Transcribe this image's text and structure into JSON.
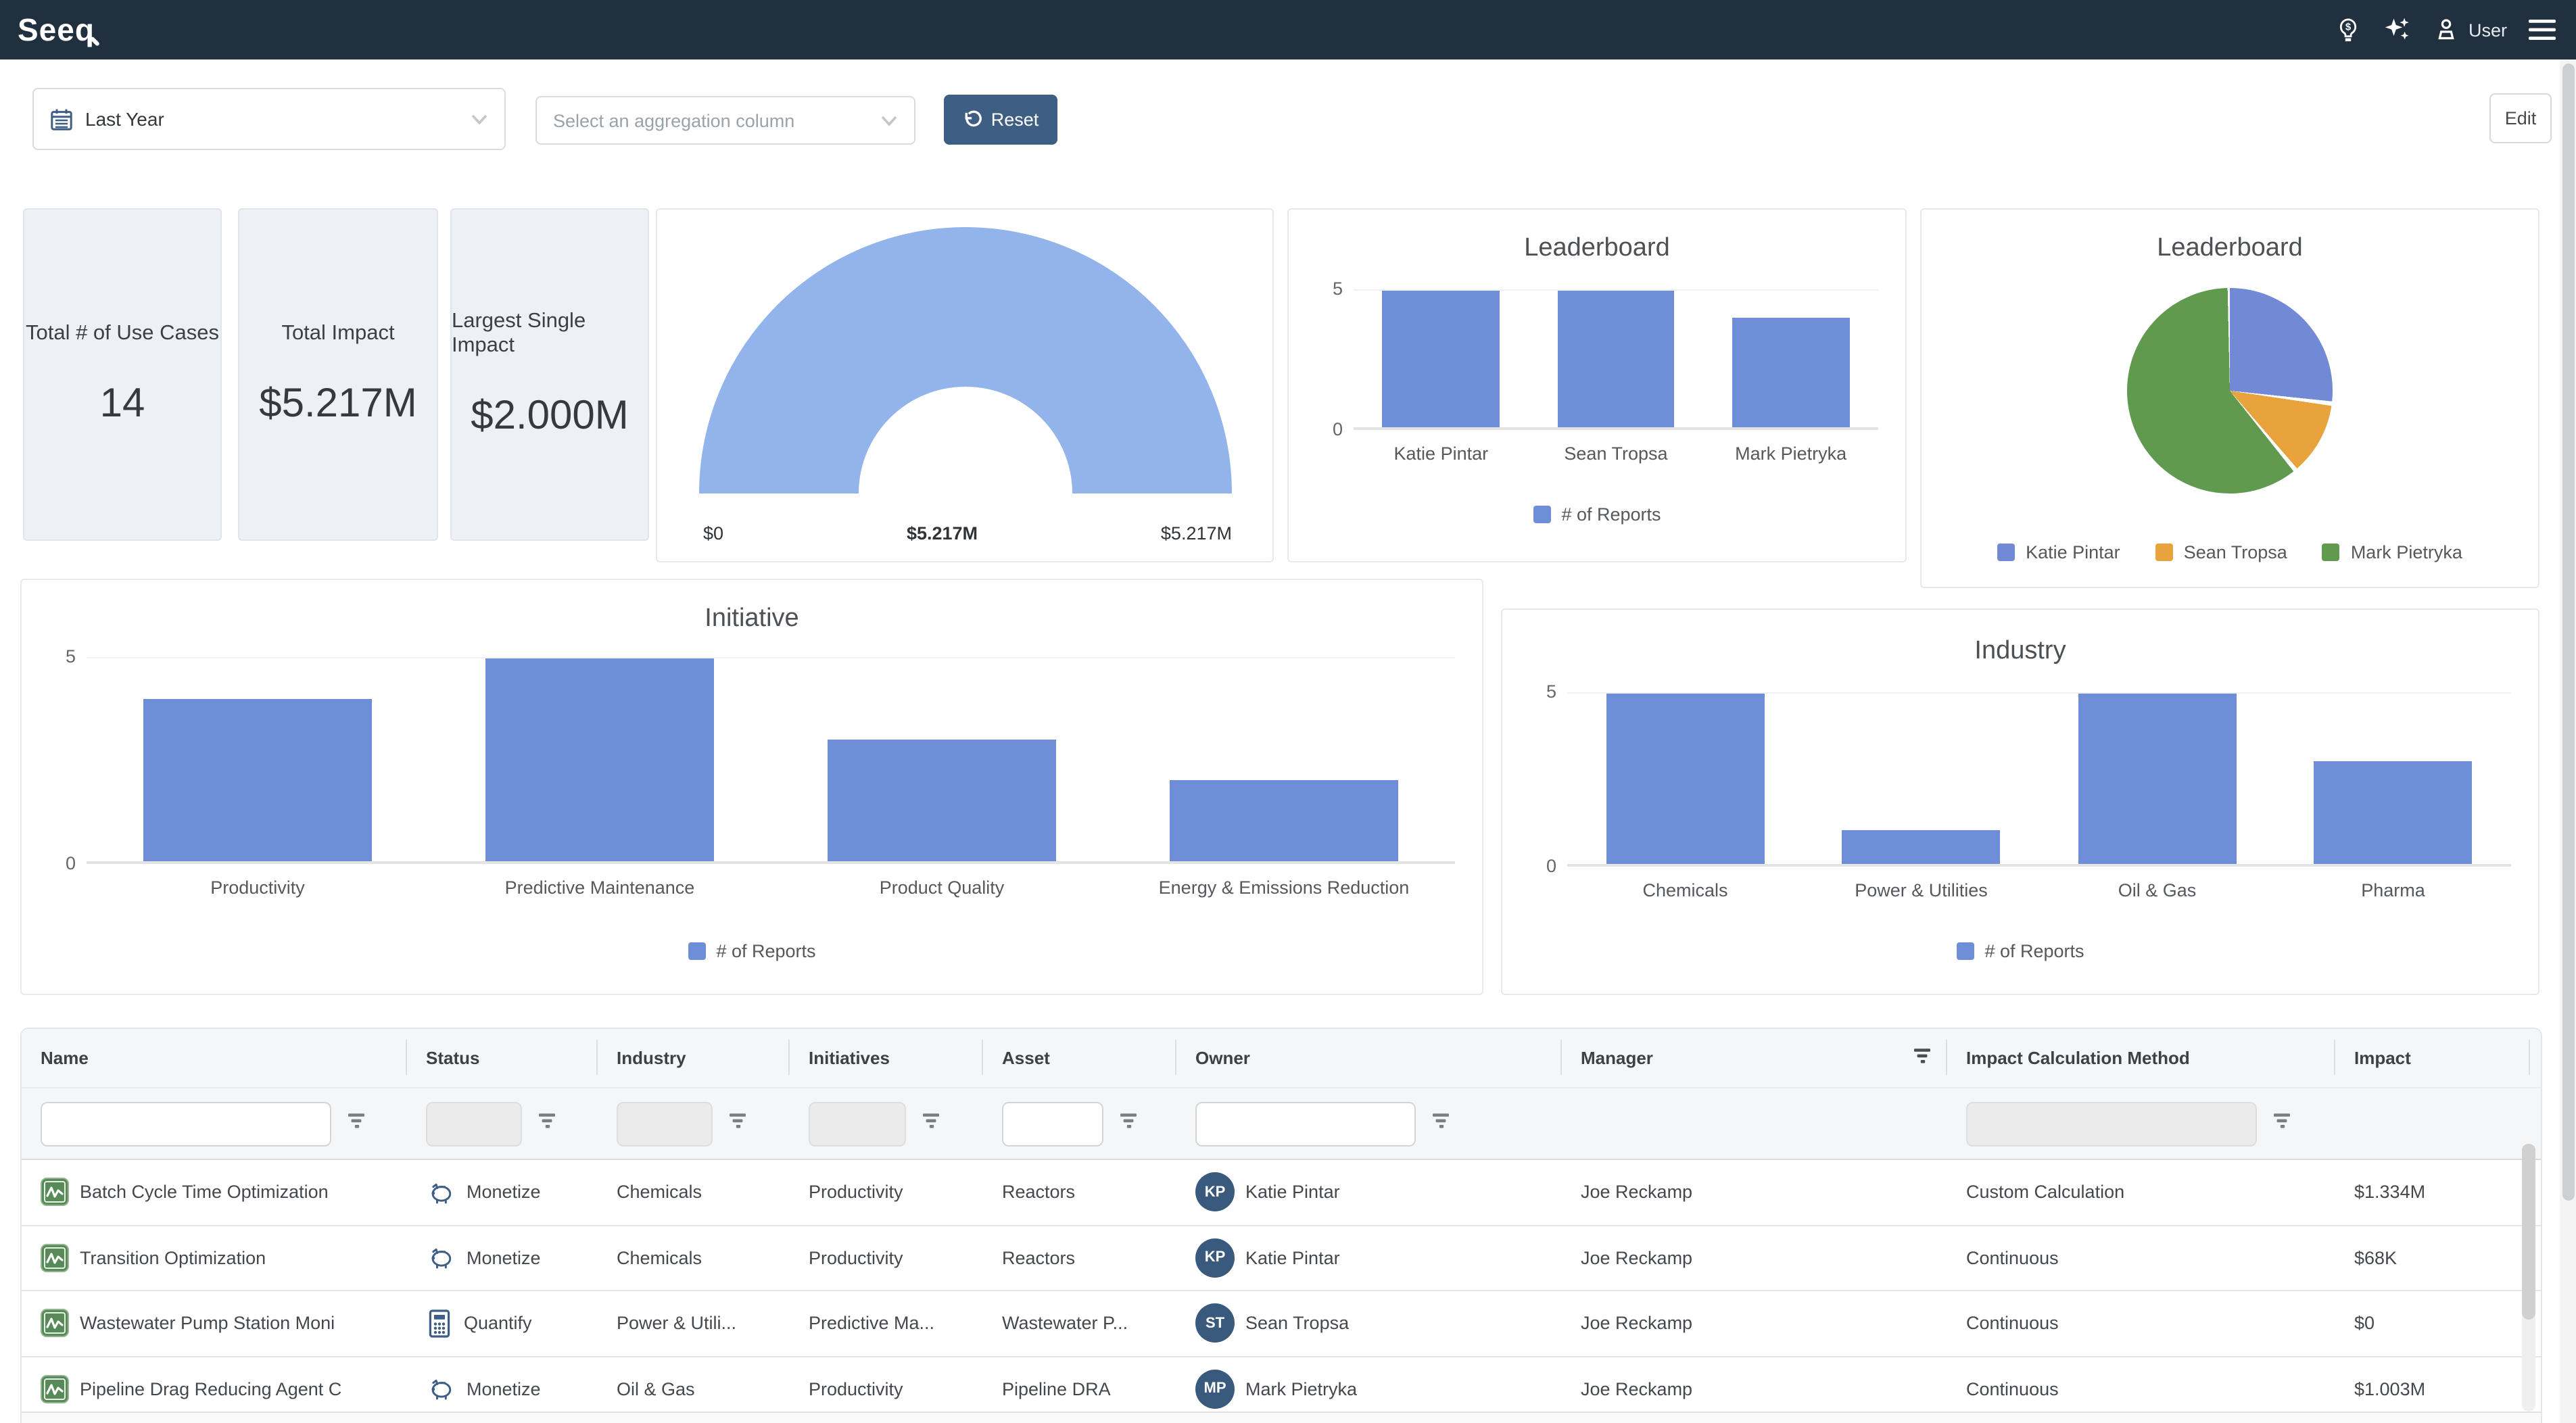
{
  "navbar": {
    "logo": "Seeq",
    "user_label": "User",
    "icons": [
      "lightbulb-dollar-icon",
      "sparkles-icon",
      "user-icon",
      "menu-icon"
    ]
  },
  "toolbar": {
    "date_range_value": "Last Year",
    "date_range_icon": "calendar-icon",
    "aggregation_placeholder": "Select an aggregation column",
    "reset_label": "Reset",
    "reset_icon": "undo-icon",
    "edit_label": "Edit"
  },
  "kpis": [
    {
      "label": "Total # of Use Cases",
      "value": "14"
    },
    {
      "label": "Total Impact",
      "value": "$5.217M"
    },
    {
      "label": "Largest Single Impact",
      "value": "$2.000M"
    }
  ],
  "chart_data": [
    {
      "type": "pie",
      "variant": "gauge",
      "title": "",
      "min_label": "$0",
      "value_label": "$5.217M",
      "max_label": "$5.217M",
      "color": "#92b4ea",
      "value": 5.217,
      "range": [
        0,
        5.217
      ]
    },
    {
      "type": "bar",
      "title": "Leaderboard",
      "categories": [
        "Katie Pintar",
        "Sean Tropsa",
        "Mark Pietryka"
      ],
      "values": [
        5,
        5,
        4
      ],
      "ylim": [
        0,
        5
      ],
      "yticks": [
        0,
        5
      ],
      "legend": "# of Reports",
      "color": "#6f8ed8",
      "legend_position": "bottom",
      "grid": true
    },
    {
      "type": "pie",
      "title": "Leaderboard",
      "labels": [
        "Katie Pintar",
        "Sean Tropsa",
        "Mark Pietryka"
      ],
      "values": [
        27,
        12,
        61
      ],
      "colors": [
        "#7289d5",
        "#e8a33c",
        "#5f9a4e"
      ],
      "legend_position": "bottom"
    },
    {
      "type": "bar",
      "title": "Initiative",
      "categories": [
        "Productivity",
        "Predictive Maintenance",
        "Product Quality",
        "Energy & Emissions Reduction"
      ],
      "values": [
        4,
        5,
        3,
        2
      ],
      "ylim": [
        0,
        5
      ],
      "yticks": [
        0,
        5
      ],
      "legend": "# of Reports",
      "color": "#6f8ed8",
      "legend_position": "bottom",
      "grid": true
    },
    {
      "type": "bar",
      "title": "Industry",
      "categories": [
        "Chemicals",
        "Power & Utilities",
        "Oil & Gas",
        "Pharma"
      ],
      "values": [
        5,
        1,
        5,
        3
      ],
      "ylim": [
        0,
        5
      ],
      "yticks": [
        0,
        5
      ],
      "legend": "# of Reports",
      "color": "#6f8ed8",
      "legend_position": "bottom",
      "grid": true
    }
  ],
  "table": {
    "columns": [
      {
        "key": "name",
        "label": "Name",
        "filter": "input",
        "filter_state": "enabled"
      },
      {
        "key": "status",
        "label": "Status",
        "filter": "input",
        "filter_state": "disabled"
      },
      {
        "key": "industry",
        "label": "Industry",
        "filter": "input",
        "filter_state": "disabled"
      },
      {
        "key": "initiatives",
        "label": "Initiatives",
        "filter": "input",
        "filter_state": "disabled"
      },
      {
        "key": "asset",
        "label": "Asset",
        "filter": "input",
        "filter_state": "enabled"
      },
      {
        "key": "owner",
        "label": "Owner",
        "filter": "input",
        "filter_state": "enabled"
      },
      {
        "key": "manager",
        "label": "Manager",
        "filter": "none",
        "header_filter_icon": true
      },
      {
        "key": "method",
        "label": "Impact Calculation Method",
        "filter": "input",
        "filter_state": "disabled"
      },
      {
        "key": "impact",
        "label": "Impact",
        "filter": "none"
      }
    ],
    "filter_icon": "filter-icon",
    "row_icon": "report-icon",
    "rows": [
      {
        "name": "Batch Cycle Time Optimization",
        "status": "Monetize",
        "status_icon": "piggy-bank-icon",
        "industry": "Chemicals",
        "initiatives": "Productivity",
        "asset": "Reactors",
        "owner": "Katie Pintar",
        "owner_initials": "KP",
        "manager": "Joe Reckamp",
        "method": "Custom Calculation",
        "impact": "$1.334M"
      },
      {
        "name": "Transition Optimization",
        "status": "Monetize",
        "status_icon": "piggy-bank-icon",
        "industry": "Chemicals",
        "initiatives": "Productivity",
        "asset": "Reactors",
        "owner": "Katie Pintar",
        "owner_initials": "KP",
        "manager": "Joe Reckamp",
        "method": "Continuous",
        "impact": "$68K"
      },
      {
        "name": "Wastewater Pump Station Moni",
        "status": "Quantify",
        "status_icon": "calculator-icon",
        "industry": "Power & Utili...",
        "initiatives": "Predictive Ma...",
        "asset": "Wastewater P...",
        "owner": "Sean Tropsa",
        "owner_initials": "ST",
        "manager": "Joe Reckamp",
        "method": "Continuous",
        "impact": "$0"
      },
      {
        "name": "Pipeline Drag Reducing Agent C",
        "status": "Monetize",
        "status_icon": "piggy-bank-icon",
        "industry": "Oil & Gas",
        "initiatives": "Productivity",
        "asset": "Pipeline DRA",
        "owner": "Mark Pietryka",
        "owner_initials": "MP",
        "manager": "Joe Reckamp",
        "method": "Continuous",
        "impact": "$1.003M"
      }
    ]
  }
}
